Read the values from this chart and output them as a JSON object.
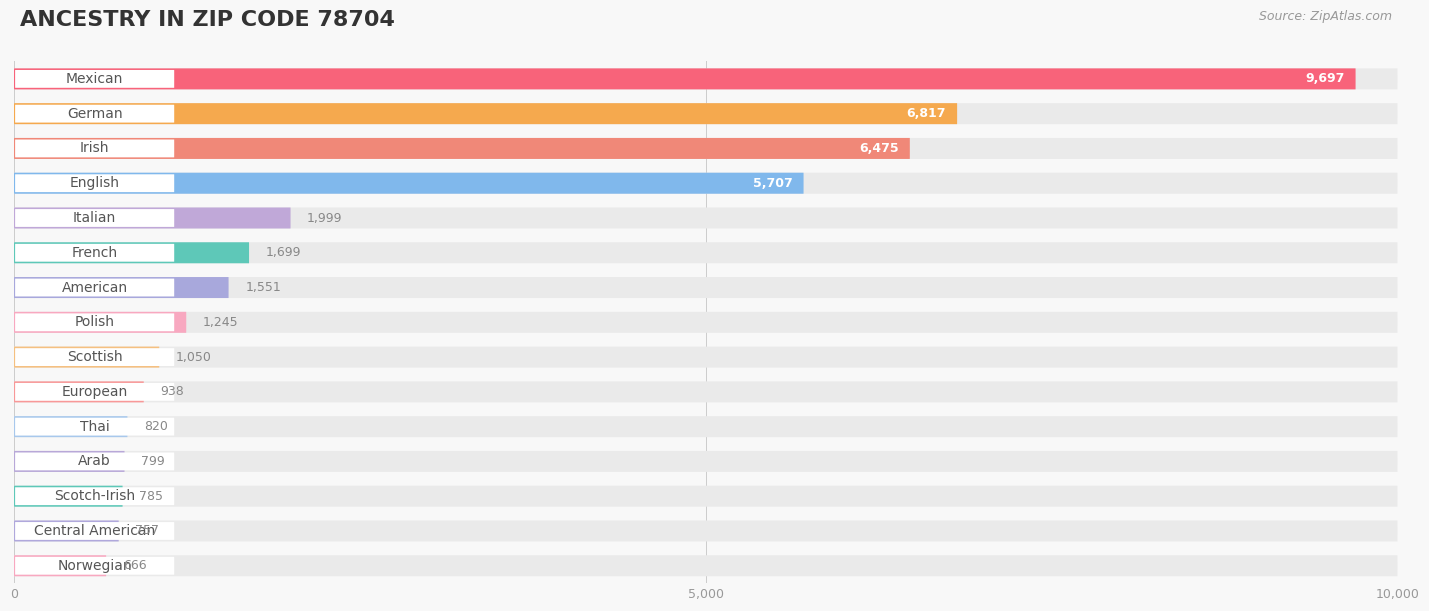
{
  "title": "ANCESTRY IN ZIP CODE 78704",
  "source": "Source: ZipAtlas.com",
  "categories": [
    "Mexican",
    "German",
    "Irish",
    "English",
    "Italian",
    "French",
    "American",
    "Polish",
    "Scottish",
    "European",
    "Thai",
    "Arab",
    "Scotch-Irish",
    "Central American",
    "Norwegian"
  ],
  "values": [
    9697,
    6817,
    6475,
    5707,
    1999,
    1699,
    1551,
    1245,
    1050,
    938,
    820,
    799,
    785,
    757,
    666
  ],
  "bar_colors": [
    "#F8637A",
    "#F5A94E",
    "#F08878",
    "#80B8EC",
    "#C0A8D8",
    "#5EC8B8",
    "#A8A8DC",
    "#F8A8C0",
    "#F5C080",
    "#F89898",
    "#A8C8EC",
    "#B8A8D8",
    "#5EC8B8",
    "#B0A8DC",
    "#F8A8C0"
  ],
  "row_bg_color": "#EAEAEA",
  "white_pill_color": "#FFFFFF",
  "xlim": [
    0,
    10000
  ],
  "xticks": [
    0,
    5000,
    10000
  ],
  "background_color": "#F8F8F8",
  "title_fontsize": 16,
  "source_fontsize": 9,
  "label_fontsize": 10,
  "value_fontsize": 9,
  "value_inside_color": "#FFFFFF",
  "value_outside_color": "#888888",
  "label_text_color": "#555555",
  "inside_threshold": 5000
}
